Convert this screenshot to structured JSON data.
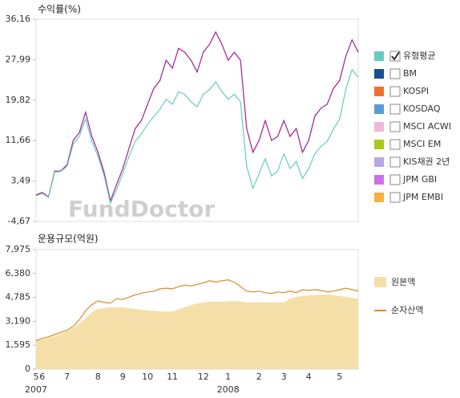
{
  "chart_data": [
    {
      "type": "line",
      "title": "수익률(%)",
      "watermark": "FundDoctor",
      "ylim": [
        -4.67,
        36.16
      ],
      "yticks": [
        {
          "value": -4.67,
          "label": "-4,67"
        },
        {
          "value": 3.49,
          "label": "3,49"
        },
        {
          "value": 11.66,
          "label": "11,66"
        },
        {
          "value": 19.82,
          "label": "19,82"
        },
        {
          "value": 27.99,
          "label": "27,99"
        },
        {
          "value": 36.16,
          "label": "36,16"
        }
      ],
      "grid": false,
      "series": [
        {
          "color": "#a0208e",
          "values": [
            0.7,
            1.2,
            0.3,
            5.5,
            5.5,
            6.8,
            11.7,
            13.3,
            17.4,
            12.5,
            9.3,
            5.2,
            -0.5,
            2.8,
            6.0,
            10.1,
            14.1,
            15.7,
            19.0,
            22.2,
            23.8,
            27.9,
            26.3,
            30.3,
            29.5,
            27.9,
            25.5,
            29.5,
            31.1,
            33.6,
            31.1,
            27.9,
            29.5,
            27.9,
            14.1,
            9.3,
            11.7,
            15.7,
            11.7,
            12.5,
            15.7,
            12.5,
            14.1,
            9.3,
            11.7,
            16.6,
            18.2,
            19.0,
            22.2,
            23.8,
            28.7,
            32.0,
            29.5
          ]
        },
        {
          "color": "#66cbbf",
          "values": [
            0.5,
            1.0,
            0.2,
            5.3,
            5.4,
            6.5,
            11.0,
            12.5,
            16.0,
            11.5,
            8.5,
            4.5,
            -1.0,
            1.8,
            5.0,
            8.5,
            11.5,
            13.0,
            15.0,
            16.5,
            18.0,
            20.0,
            19.0,
            21.5,
            21.0,
            19.5,
            18.5,
            21.0,
            22.0,
            23.5,
            21.5,
            20.0,
            21.0,
            19.5,
            6.5,
            2.0,
            5.0,
            8.0,
            4.5,
            5.5,
            9.0,
            6.0,
            7.5,
            4.0,
            6.0,
            9.0,
            10.5,
            11.5,
            14.0,
            16.0,
            22.0,
            26.0,
            24.5
          ]
        }
      ],
      "legend": [
        {
          "label": "유형평균",
          "color": "#66ccbb",
          "checked": true
        },
        {
          "label": "BM",
          "color": "#1a4f8f",
          "checked": false
        },
        {
          "label": "KOSPI",
          "color": "#f07030",
          "checked": false
        },
        {
          "label": "KOSDAQ",
          "color": "#5a9ad6",
          "checked": false
        },
        {
          "label": "MSCI ACWI",
          "color": "#f0b8d8",
          "checked": false
        },
        {
          "label": "MSCI EM",
          "color": "#a8c820",
          "checked": false
        },
        {
          "label": "KIS채권 2년",
          "color": "#b8a8e0",
          "checked": false
        },
        {
          "label": "JPM GBI",
          "color": "#d070e8",
          "checked": false
        },
        {
          "label": "JPM EMBI",
          "color": "#f8b040",
          "checked": false
        }
      ]
    },
    {
      "type": "area",
      "title": "운용규모(억원)",
      "ylim": [
        0,
        7975
      ],
      "yticks": [
        0,
        {
          "value": 1595,
          "label": "1,595"
        },
        {
          "value": 3190,
          "label": "3,190"
        },
        {
          "value": 4785,
          "label": "4,785"
        },
        {
          "value": 6380,
          "label": "6,380"
        },
        {
          "value": 7975,
          "label": "7,975"
        }
      ],
      "categories": [
        "5",
        "6",
        null,
        null,
        null,
        "7",
        null,
        null,
        null,
        null,
        "8",
        null,
        null,
        null,
        "9",
        null,
        null,
        null,
        "10",
        null,
        null,
        null,
        "11",
        null,
        null,
        null,
        null,
        "12",
        null,
        null,
        null,
        "1",
        null,
        null,
        null,
        null,
        "2",
        null,
        null,
        null,
        "3",
        null,
        null,
        null,
        "4",
        null,
        null,
        null,
        null,
        "5",
        null,
        null,
        null
      ],
      "years": [
        "2007",
        null,
        null,
        null,
        null,
        null,
        null,
        null,
        null,
        null,
        null,
        null,
        null,
        null,
        null,
        null,
        null,
        null,
        null,
        null,
        null,
        null,
        null,
        null,
        null,
        null,
        null,
        null,
        null,
        null,
        null,
        "2008",
        null,
        null,
        null,
        null,
        null,
        null,
        null,
        null,
        null,
        null,
        null,
        null,
        null,
        null,
        null,
        null,
        null,
        null,
        null,
        null,
        null
      ],
      "series": [
        {
          "name": "원본액",
          "type": "area",
          "color": "#f5dfa8",
          "values": [
            1870,
            1980,
            2090,
            2200,
            2350,
            2520,
            2750,
            3050,
            3400,
            3800,
            4015,
            4070,
            4120,
            4120,
            4120,
            4070,
            4015,
            3960,
            3905,
            3880,
            3850,
            3850,
            3850,
            3990,
            4120,
            4250,
            4390,
            4440,
            4495,
            4495,
            4495,
            4520,
            4550,
            4500,
            4440,
            4440,
            4440,
            4440,
            4440,
            4440,
            4440,
            4700,
            4815,
            4870,
            4925,
            4950,
            4975,
            4975,
            4925,
            4870,
            4815,
            4760,
            4710
          ]
        },
        {
          "name": "순자산액",
          "type": "line",
          "color": "#d98a2a",
          "values": [
            1900,
            2050,
            2150,
            2300,
            2450,
            2600,
            2850,
            3300,
            3900,
            4300,
            4550,
            4450,
            4400,
            4700,
            4650,
            4800,
            4950,
            5050,
            5150,
            5200,
            5350,
            5400,
            5350,
            5500,
            5600,
            5550,
            5650,
            5750,
            5900,
            5800,
            5900,
            5950,
            5800,
            5500,
            5200,
            5150,
            5200,
            5100,
            5050,
            5150,
            5100,
            5200,
            5100,
            5300,
            5250,
            5300,
            5250,
            5150,
            5200,
            5300,
            5400,
            5300,
            5200
          ]
        }
      ]
    }
  ]
}
